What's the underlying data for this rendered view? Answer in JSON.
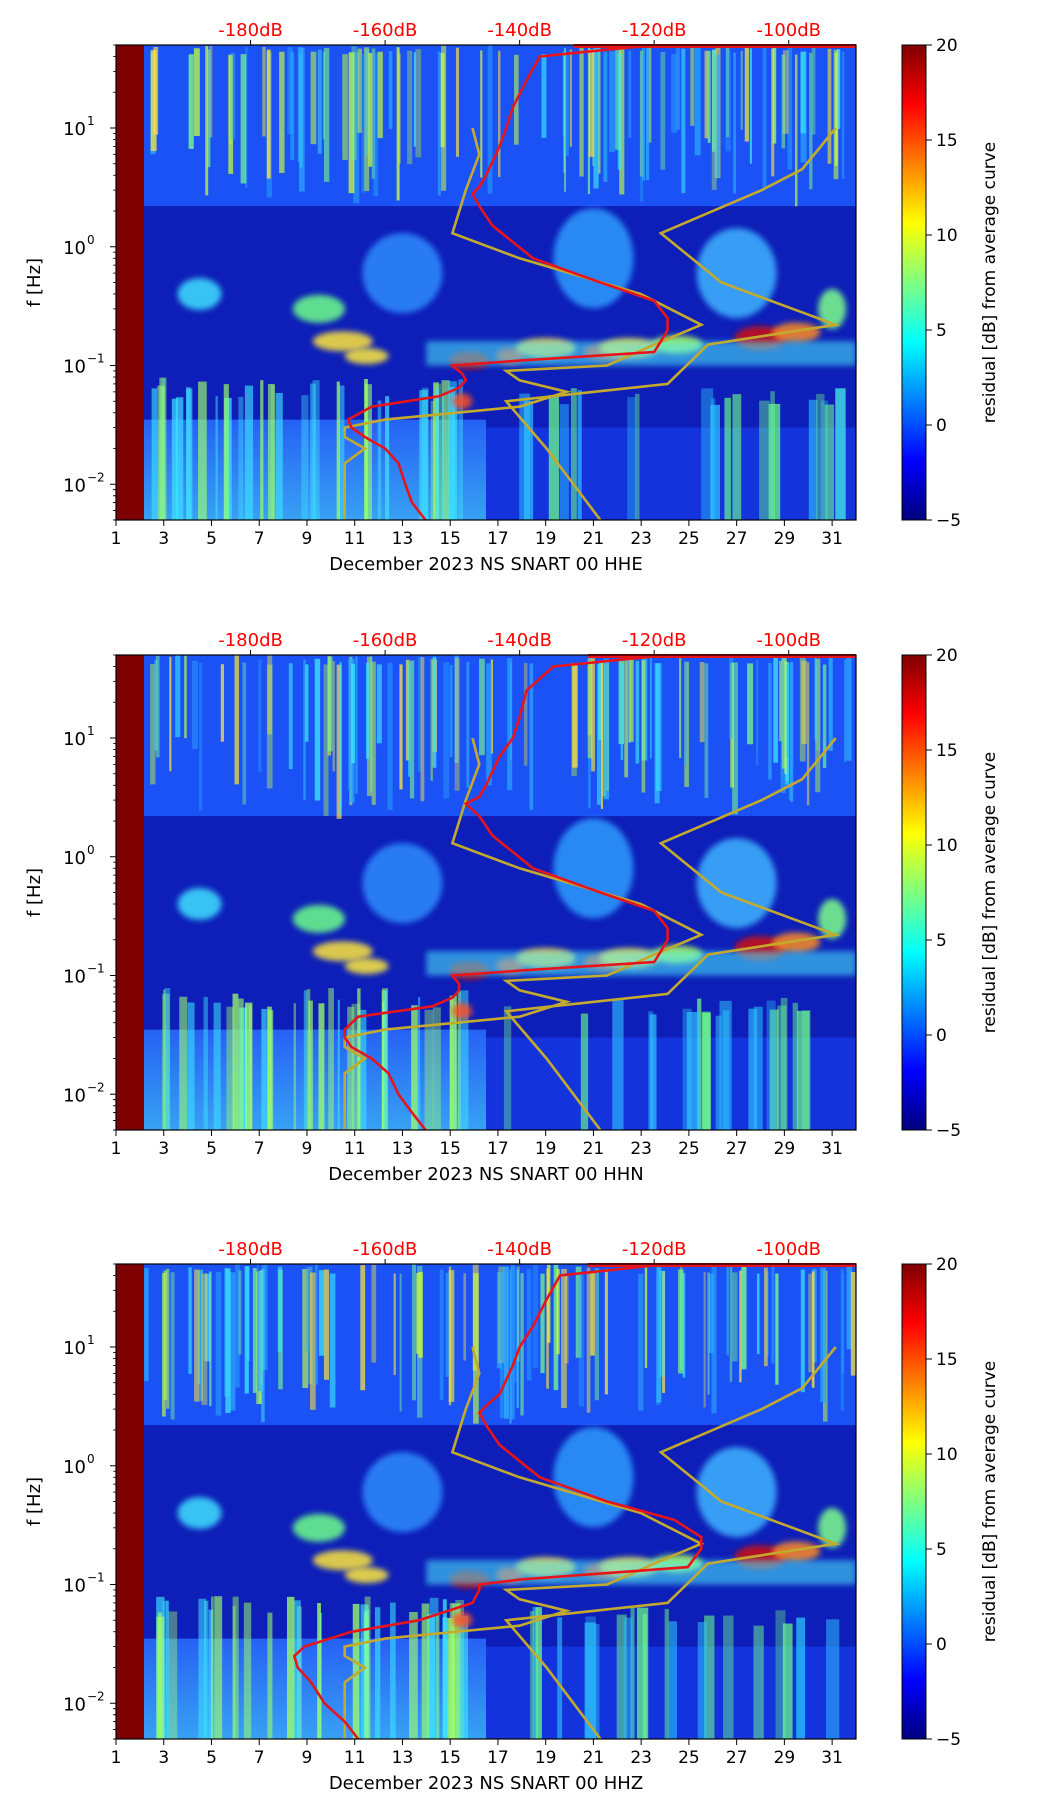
{
  "figure": {
    "colorbar_label": "residual [dB] from average curve",
    "colorbar_ticks": [
      "20",
      "15",
      "10",
      "5",
      "0",
      "−5"
    ],
    "ylabel": "f [Hz]",
    "y_ticks": [
      "10",
      "10",
      "10"
    ],
    "y_tick_exponents": [
      "1",
      "0",
      "−1",
      "−2"
    ],
    "top_ticks": [
      "-180dB",
      "-160dB",
      "-140dB",
      "-120dB",
      "-100dB"
    ],
    "x_ticks": [
      "1",
      "3",
      "5",
      "7",
      "9",
      "11",
      "13",
      "15",
      "17",
      "19",
      "21",
      "23",
      "25",
      "27",
      "29",
      "31"
    ],
    "colors": {
      "red_curve": "#e8141c",
      "model_curve": "#c3aa2e",
      "top_tick_text": "#ff0000"
    }
  },
  "chart_data": [
    {
      "type": "heatmap",
      "title": "",
      "xlabel": "December 2023 NS SNART 00 HHE",
      "ylabel": "f [Hz]",
      "x_range_days": [
        1,
        32
      ],
      "y_range_hz": [
        0.005,
        50
      ],
      "y_scale": "log",
      "color_range_db": [
        -5,
        20
      ],
      "colormap": "jet",
      "top_axis_db": [
        -180,
        -160,
        -140,
        -120,
        -100
      ],
      "red_curve_db_vs_hz": [
        [
          -154,
          0.005
        ],
        [
          -156,
          0.007
        ],
        [
          -157,
          0.01
        ],
        [
          -158,
          0.015
        ],
        [
          -160,
          0.02
        ],
        [
          -163,
          0.025
        ],
        [
          -165,
          0.03
        ],
        [
          -165.5,
          0.035
        ],
        [
          -162,
          0.045
        ],
        [
          -152,
          0.055
        ],
        [
          -149,
          0.065
        ],
        [
          -148,
          0.075
        ],
        [
          -148.5,
          0.085
        ],
        [
          -150,
          0.1
        ],
        [
          -140,
          0.11
        ],
        [
          -120,
          0.13
        ],
        [
          -119,
          0.16
        ],
        [
          -118,
          0.2
        ],
        [
          -118,
          0.25
        ],
        [
          -120,
          0.35
        ],
        [
          -128,
          0.5
        ],
        [
          -138,
          0.8
        ],
        [
          -144,
          1.5
        ],
        [
          -146,
          2.2
        ],
        [
          -147,
          2.8
        ],
        [
          -146,
          3.2
        ],
        [
          -145,
          4
        ],
        [
          -143,
          7
        ],
        [
          -142,
          10
        ],
        [
          -141,
          15
        ],
        [
          -139,
          25
        ],
        [
          -137,
          40
        ],
        [
          -120,
          50
        ]
      ]
    },
    {
      "type": "heatmap",
      "title": "",
      "xlabel": "December 2023 NS SNART 00 HHN",
      "ylabel": "f [Hz]",
      "x_range_days": [
        1,
        32
      ],
      "y_range_hz": [
        0.005,
        50
      ],
      "y_scale": "log",
      "color_range_db": [
        -5,
        20
      ],
      "colormap": "jet",
      "top_axis_db": [
        -180,
        -160,
        -140,
        -120,
        -100
      ],
      "red_curve_db_vs_hz": [
        [
          -154,
          0.005
        ],
        [
          -156,
          0.007
        ],
        [
          -158,
          0.01
        ],
        [
          -159.5,
          0.015
        ],
        [
          -162,
          0.02
        ],
        [
          -165,
          0.025
        ],
        [
          -166,
          0.03
        ],
        [
          -166,
          0.035
        ],
        [
          -164,
          0.045
        ],
        [
          -153,
          0.055
        ],
        [
          -150,
          0.065
        ],
        [
          -149,
          0.075
        ],
        [
          -149,
          0.085
        ],
        [
          -150,
          0.1
        ],
        [
          -140,
          0.11
        ],
        [
          -120,
          0.13
        ],
        [
          -119,
          0.16
        ],
        [
          -118,
          0.2
        ],
        [
          -118,
          0.25
        ],
        [
          -120,
          0.35
        ],
        [
          -128,
          0.5
        ],
        [
          -138,
          0.8
        ],
        [
          -144,
          1.5
        ],
        [
          -146,
          2.2
        ],
        [
          -148,
          2.8
        ],
        [
          -146,
          3.2
        ],
        [
          -145,
          4
        ],
        [
          -143,
          7
        ],
        [
          -141,
          10
        ],
        [
          -140,
          15
        ],
        [
          -139,
          25
        ],
        [
          -135,
          40
        ],
        [
          -118,
          50
        ]
      ]
    },
    {
      "type": "heatmap",
      "title": "",
      "xlabel": "December 2023 NS SNART 00 HHZ",
      "ylabel": "f [Hz]",
      "x_range_days": [
        1,
        32
      ],
      "y_range_hz": [
        0.005,
        50
      ],
      "y_scale": "log",
      "color_range_db": [
        -5,
        20
      ],
      "colormap": "jet",
      "top_axis_db": [
        -180,
        -160,
        -140,
        -120,
        -100
      ],
      "red_curve_db_vs_hz": [
        [
          -164,
          0.005
        ],
        [
          -166,
          0.007
        ],
        [
          -169,
          0.01
        ],
        [
          -171,
          0.015
        ],
        [
          -173,
          0.02
        ],
        [
          -173.5,
          0.025
        ],
        [
          -172,
          0.03
        ],
        [
          -165,
          0.04
        ],
        [
          -155,
          0.05
        ],
        [
          -147,
          0.07
        ],
        [
          -146,
          0.09
        ],
        [
          -146,
          0.1
        ],
        [
          -140,
          0.11
        ],
        [
          -115,
          0.14
        ],
        [
          -113,
          0.2
        ],
        [
          -113,
          0.25
        ],
        [
          -117,
          0.35
        ],
        [
          -127,
          0.5
        ],
        [
          -137,
          0.8
        ],
        [
          -143,
          1.5
        ],
        [
          -145,
          2.2
        ],
        [
          -146,
          2.8
        ],
        [
          -145,
          3.2
        ],
        [
          -143,
          4
        ],
        [
          -141,
          7
        ],
        [
          -140,
          10
        ],
        [
          -138,
          15
        ],
        [
          -136,
          25
        ],
        [
          -134,
          40
        ],
        [
          -118,
          50
        ]
      ]
    }
  ]
}
